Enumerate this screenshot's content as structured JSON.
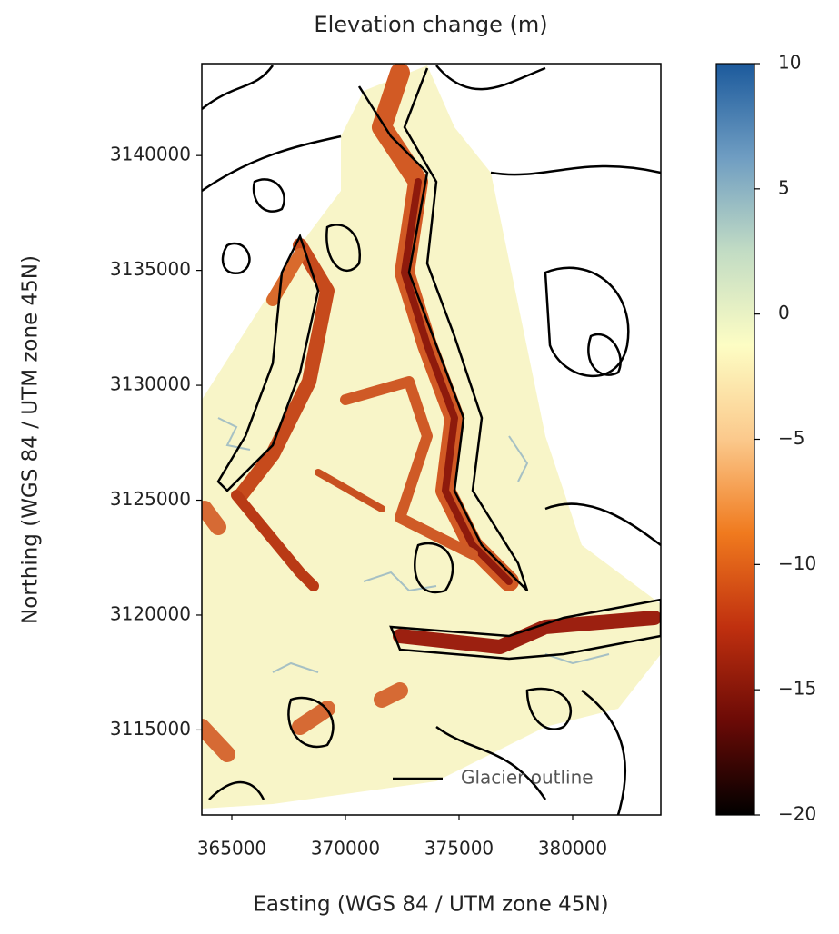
{
  "chart_data": {
    "type": "map",
    "title": "Elevation change (m)",
    "xlabel": "Easting (WGS 84 / UTM zone 45N)",
    "ylabel": "Northing (WGS 84 / UTM zone 45N)",
    "xlim": [
      363680,
      383880
    ],
    "xticks": [
      365000,
      370000,
      375000,
      380000
    ],
    "ylim": [
      3111300,
      3144000
    ],
    "yticks": [
      3115000,
      3120000,
      3125000,
      3130000,
      3135000,
      3140000
    ],
    "clim": [
      -20,
      10
    ],
    "cticks": [
      {
        "value": -20,
        "label": "−20"
      },
      {
        "value": -15,
        "label": "−15"
      },
      {
        "value": -10,
        "label": "−10"
      },
      {
        "value": -5,
        "label": "−5"
      },
      0,
      5,
      10
    ],
    "colormap": [
      "#000000",
      "#6b0a06",
      "#c0300f",
      "#f07a1e",
      "#fbc98c",
      "#fdfdc4",
      "#c2dcc4",
      "#6f9dc2",
      "#1c5a9c"
    ],
    "legend": {
      "label": "Glacier outline",
      "color": "#000000",
      "position": "lower right"
    }
  }
}
